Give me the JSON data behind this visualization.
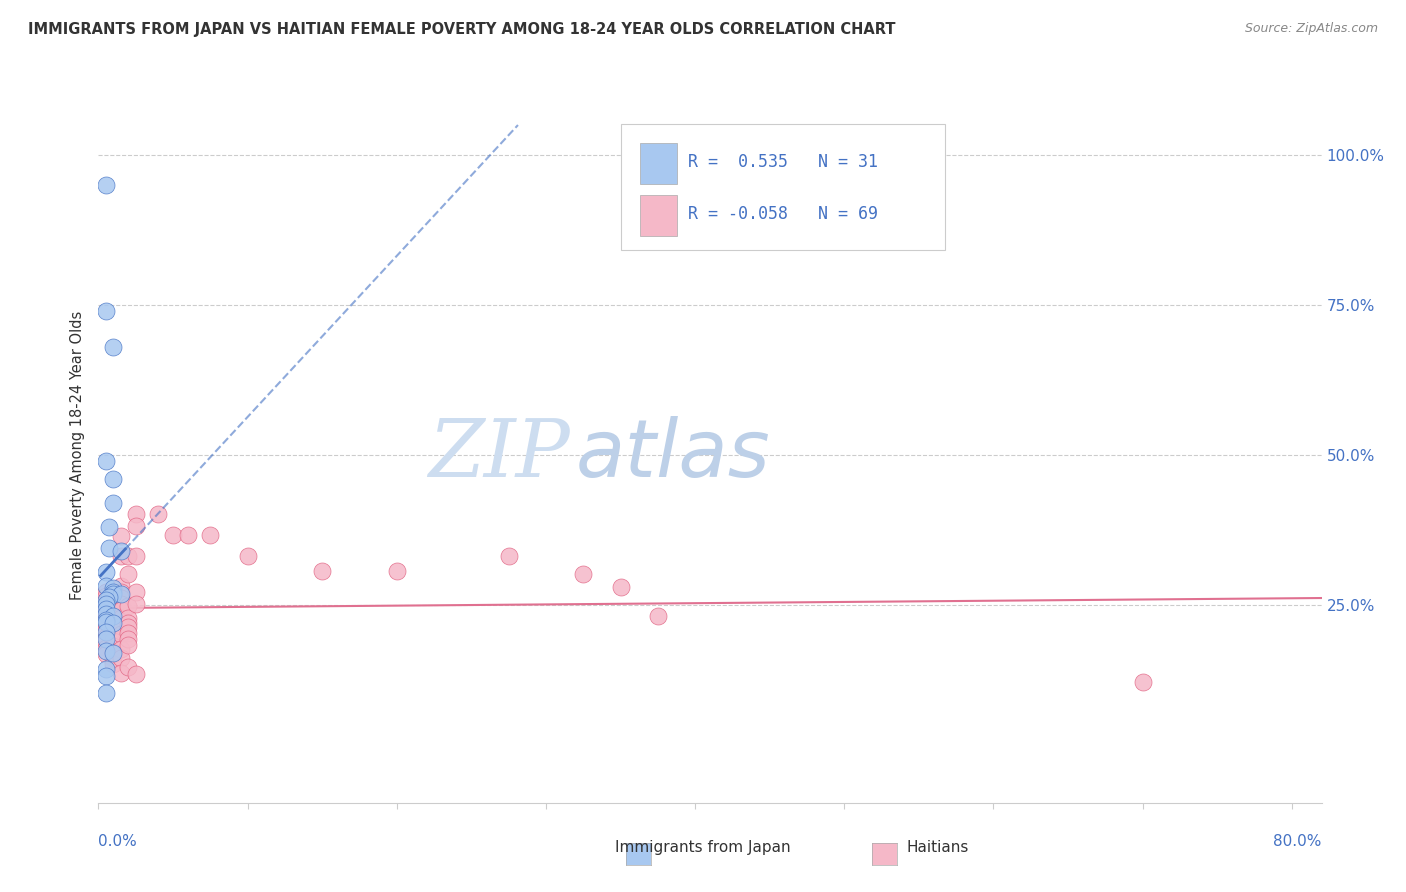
{
  "title": "IMMIGRANTS FROM JAPAN VS HAITIAN FEMALE POVERTY AMONG 18-24 YEAR OLDS CORRELATION CHART",
  "source": "Source: ZipAtlas.com",
  "ylabel": "Female Poverty Among 18-24 Year Olds",
  "xlim": [
    0.0,
    0.82
  ],
  "ylim": [
    -0.08,
    1.08
  ],
  "japan_color": "#a8c8f0",
  "haiti_color": "#f5b8c8",
  "japan_edge_color": "#4472c4",
  "haiti_edge_color": "#e06080",
  "japan_line_color": "#4472c4",
  "haiti_line_color": "#e07090",
  "grid_color": "#cccccc",
  "watermark_zip_color": "#cdddf0",
  "watermark_atlas_color": "#bdd0e8",
  "legend_text_color": "#4472c4",
  "axis_label_color": "#4472c4",
  "ytick_right": [
    "25.0%",
    "50.0%",
    "75.0%",
    "100.0%"
  ],
  "ytick_right_vals": [
    0.25,
    0.5,
    0.75,
    1.0
  ],
  "japan_dots": [
    [
      0.005,
      0.95
    ],
    [
      0.005,
      0.74
    ],
    [
      0.01,
      0.68
    ],
    [
      0.005,
      0.49
    ],
    [
      0.01,
      0.46
    ],
    [
      0.01,
      0.42
    ],
    [
      0.007,
      0.38
    ],
    [
      0.007,
      0.345
    ],
    [
      0.015,
      0.34
    ],
    [
      0.005,
      0.305
    ],
    [
      0.005,
      0.282
    ],
    [
      0.01,
      0.278
    ],
    [
      0.01,
      0.272
    ],
    [
      0.01,
      0.268
    ],
    [
      0.015,
      0.268
    ],
    [
      0.007,
      0.263
    ],
    [
      0.005,
      0.258
    ],
    [
      0.005,
      0.252
    ],
    [
      0.005,
      0.243
    ],
    [
      0.005,
      0.234
    ],
    [
      0.01,
      0.232
    ],
    [
      0.005,
      0.225
    ],
    [
      0.005,
      0.222
    ],
    [
      0.01,
      0.22
    ],
    [
      0.005,
      0.204
    ],
    [
      0.005,
      0.193
    ],
    [
      0.005,
      0.173
    ],
    [
      0.01,
      0.17
    ],
    [
      0.005,
      0.143
    ],
    [
      0.005,
      0.132
    ],
    [
      0.005,
      0.103
    ]
  ],
  "haiti_dots": [
    [
      0.005,
      0.272
    ],
    [
      0.005,
      0.264
    ],
    [
      0.005,
      0.258
    ],
    [
      0.005,
      0.252
    ],
    [
      0.005,
      0.246
    ],
    [
      0.005,
      0.24
    ],
    [
      0.005,
      0.234
    ],
    [
      0.005,
      0.228
    ],
    [
      0.005,
      0.222
    ],
    [
      0.005,
      0.216
    ],
    [
      0.005,
      0.21
    ],
    [
      0.005,
      0.204
    ],
    [
      0.005,
      0.196
    ],
    [
      0.005,
      0.188
    ],
    [
      0.005,
      0.178
    ],
    [
      0.005,
      0.168
    ],
    [
      0.01,
      0.272
    ],
    [
      0.01,
      0.264
    ],
    [
      0.01,
      0.256
    ],
    [
      0.01,
      0.248
    ],
    [
      0.01,
      0.24
    ],
    [
      0.01,
      0.232
    ],
    [
      0.01,
      0.224
    ],
    [
      0.01,
      0.216
    ],
    [
      0.01,
      0.208
    ],
    [
      0.01,
      0.2
    ],
    [
      0.01,
      0.192
    ],
    [
      0.01,
      0.182
    ],
    [
      0.01,
      0.172
    ],
    [
      0.01,
      0.162
    ],
    [
      0.01,
      0.152
    ],
    [
      0.015,
      0.364
    ],
    [
      0.015,
      0.332
    ],
    [
      0.015,
      0.282
    ],
    [
      0.015,
      0.272
    ],
    [
      0.015,
      0.262
    ],
    [
      0.015,
      0.252
    ],
    [
      0.015,
      0.242
    ],
    [
      0.015,
      0.228
    ],
    [
      0.015,
      0.215
    ],
    [
      0.015,
      0.202
    ],
    [
      0.015,
      0.177
    ],
    [
      0.015,
      0.162
    ],
    [
      0.015,
      0.137
    ],
    [
      0.02,
      0.332
    ],
    [
      0.02,
      0.302
    ],
    [
      0.02,
      0.248
    ],
    [
      0.02,
      0.228
    ],
    [
      0.02,
      0.22
    ],
    [
      0.02,
      0.213
    ],
    [
      0.02,
      0.203
    ],
    [
      0.02,
      0.193
    ],
    [
      0.02,
      0.183
    ],
    [
      0.02,
      0.147
    ],
    [
      0.025,
      0.402
    ],
    [
      0.025,
      0.382
    ],
    [
      0.025,
      0.332
    ],
    [
      0.025,
      0.272
    ],
    [
      0.025,
      0.252
    ],
    [
      0.025,
      0.135
    ],
    [
      0.04,
      0.402
    ],
    [
      0.05,
      0.367
    ],
    [
      0.06,
      0.367
    ],
    [
      0.075,
      0.367
    ],
    [
      0.1,
      0.332
    ],
    [
      0.15,
      0.307
    ],
    [
      0.2,
      0.307
    ],
    [
      0.275,
      0.332
    ],
    [
      0.325,
      0.302
    ],
    [
      0.35,
      0.28
    ],
    [
      0.375,
      0.232
    ],
    [
      0.7,
      0.122
    ]
  ]
}
